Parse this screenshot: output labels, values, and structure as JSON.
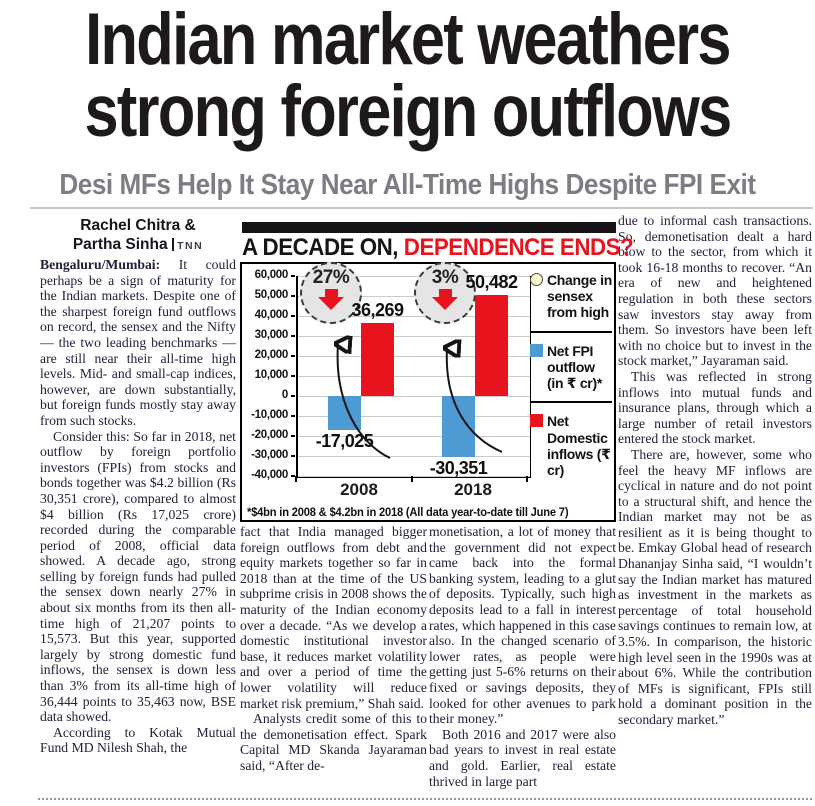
{
  "colors": {
    "accent_red": "#e8131c",
    "fpi_blue": "#4e9bd3",
    "subhead_gray": "#7e7d83",
    "ink": "#232038"
  },
  "article": {
    "headline_line1": "Indian market weathers",
    "headline_line2": "strong foreign outflows",
    "subheadline": "Desi MFs Help It Stay Near All-Time Highs Despite FPI Exit",
    "byline_line1": "Rachel Chitra &",
    "byline_line2": "Partha Sinha",
    "byline_agency": "TNN",
    "columns": {
      "col1": [
        {
          "lead": "Bengaluru/Mumbai:",
          "text": " It could perhaps be a sign of maturity for the Indian markets. Despite one of the sharpest foreign fund outflows on record, the sensex and the Nifty — the two leading benchmarks — are still near their all-time high levels. Mid- and small-cap indices, however, are down substantially, but foreign funds mostly stay away from such stocks.",
          "indent": false
        },
        {
          "text": "Consider this: So far in 2018, net outflow by foreign portfolio investors (FPIs) from stocks and bonds together was $4.2 billion (Rs 30,351 crore), compared to almost $4 billion (Rs 17,025 crore) recorded during the comparable period of 2008, official data showed. A decade ago, strong selling by foreign funds had pulled the sensex down nearly 27% in about six months from its then all-time high of 21,207 points to 15,573. But this year, supported largely by strong domestic fund inflows, the sensex is down less than 3% from its all-time high of 36,444 points to 35,463 now, BSE data showed.",
          "indent": true
        },
        {
          "text": "According to Kotak Mutual Fund MD Nilesh Shah, the",
          "indent": true
        }
      ],
      "col2": [
        {
          "text": "fact that India managed bigger foreign outflows from debt and equity markets together so far in 2018 than at the time of the US subprime crisis in 2008 shows the maturity of the Indian economy over a decade. “As we develop a domestic institutional investor base, it reduces market volatility and over a period of time the lower volatility will reduce market risk premium,” Shah said.",
          "indent": false
        },
        {
          "text": "Analysts credit some of this to the demonetisation effect. Spark Capital MD Skanda Jayaraman said, “After de-",
          "indent": true
        }
      ],
      "col3": [
        {
          "text": "monetisation, a lot of money that the government did not expect came back into the formal banking system, leading to a glut of deposits. Typically, such high deposits lead to a fall in interest rates, which happened in this case also. In the changed scenario of lower rates, as people were getting just 5-6% returns on their fixed or savings deposits, they looked for other avenues to park their money.”",
          "indent": false
        },
        {
          "text": "Both 2016 and 2017 were also bad years to invest in real estate and gold. Earlier, real estate thrived in large part",
          "indent": true
        }
      ],
      "col4": [
        {
          "text": "due to informal cash transactions. So, demonetisation dealt a hard blow to the sector, from which it took 16-18 months to recover. “An era of new and heightened regulation in both these sectors saw investors stay away from them. So investors have been left with no choice but to invest in the stock market,” Jayaraman said.",
          "indent": false
        },
        {
          "text": "This was reflected in strong inflows into mutual funds and insurance plans, through which a large number of retail investors entered the stock market.",
          "indent": true
        },
        {
          "text": "There are, however, some who feel the heavy MF inflows are cyclical in nature and do not point to a structural shift, and hence the Indian market may not be as resilient as it is being thought to be. Emkay Global head of research Dhananjay Sinha said, “I wouldn’t say the Indian market has matured as investment in the markets as percentage of total household savings continues to remain low, at 3.5%. In comparison, the historic high level seen in the 1990s was at about 6%. While the contribution of MFs is significant, FPIs still hold a dominant position in the secondary market.”",
          "indent": true
        }
      ]
    }
  },
  "chart_data": {
    "type": "bar",
    "title_black": "A DECADE ON, ",
    "title_red": "DEPENDENCE ENDS?",
    "categories": [
      "2008",
      "2018"
    ],
    "series": [
      {
        "name": "Net FPI outflow (in ₹ cr)*",
        "color": "#4e9bd3",
        "values": [
          -17025,
          -30351
        ],
        "labels": [
          "-17,025",
          "-30,351"
        ]
      },
      {
        "name": "Net Domestic inflows (₹ cr)",
        "color": "#e8131c",
        "values": [
          36269,
          50482
        ],
        "labels": [
          "36,269",
          "50,482"
        ]
      }
    ],
    "annotations": [
      {
        "label": "27%",
        "category": "2008",
        "meaning": "Change in sensex from high"
      },
      {
        "label": "3%",
        "category": "2018",
        "meaning": "Change in sensex from high"
      }
    ],
    "legend": [
      {
        "shape": "circle",
        "fill": "#faf6d0",
        "label": "Change in sensex from high"
      },
      {
        "shape": "square",
        "fill": "#4e9bd3",
        "label": "Net FPI outflow (in ₹ cr)*"
      },
      {
        "shape": "square",
        "fill": "#e8131c",
        "label": "Net Domestic inflows (₹ cr)"
      }
    ],
    "ylim": [
      -40000,
      60000
    ],
    "yticks": [
      {
        "value": 60000,
        "label": "60,000"
      },
      {
        "value": 50000,
        "label": "50,000"
      },
      {
        "value": 40000,
        "label": "40,000"
      },
      {
        "value": 30000,
        "label": "30,000"
      },
      {
        "value": 20000,
        "label": "20,000"
      },
      {
        "value": 10000,
        "label": "10,000"
      },
      {
        "value": 0,
        "label": "0"
      },
      {
        "value": -10000,
        "label": "-10,000"
      },
      {
        "value": -20000,
        "label": "-20,000"
      },
      {
        "value": -30000,
        "label": "-30,000"
      },
      {
        "value": -40000,
        "label": "-40,000"
      }
    ],
    "grid": true,
    "legend_position": "right",
    "footnote": "*$4bn in 2008 & $4.2bn in 2018 (All data year-to-date till June 7)"
  }
}
